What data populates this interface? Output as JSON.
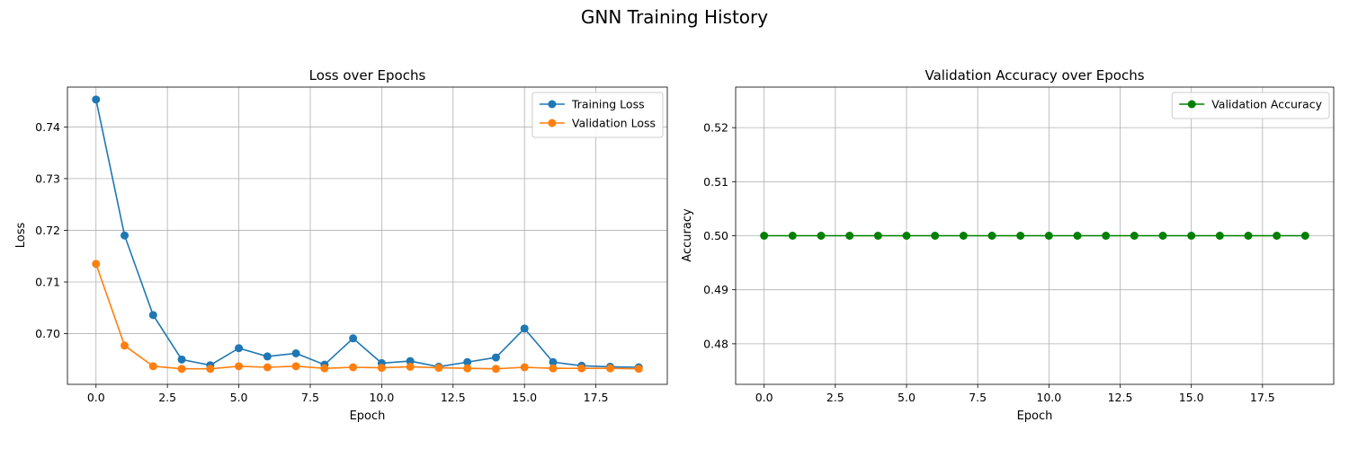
{
  "figure": {
    "title": "GNN Training History"
  },
  "chart_data": [
    {
      "type": "line",
      "title": "Loss over Epochs",
      "xlabel": "Epoch",
      "ylabel": "Loss",
      "x": [
        0,
        1,
        2,
        3,
        4,
        5,
        6,
        7,
        8,
        9,
        10,
        11,
        12,
        13,
        14,
        15,
        16,
        17,
        18,
        19
      ],
      "xlim": [
        -1.0,
        20.0
      ],
      "ylim": [
        0.6902,
        0.7477
      ],
      "xticks": [
        0.0,
        2.5,
        5.0,
        7.5,
        10.0,
        12.5,
        15.0,
        17.5
      ],
      "xtick_labels": [
        "0.0",
        "2.5",
        "5.0",
        "7.5",
        "10.0",
        "12.5",
        "15.0",
        "17.5"
      ],
      "yticks": [
        0.7,
        0.71,
        0.72,
        0.73,
        0.74
      ],
      "ytick_labels": [
        "0.70",
        "0.71",
        "0.72",
        "0.73",
        "0.74"
      ],
      "grid": true,
      "legend_position": "top-right",
      "series": [
        {
          "name": "Training Loss",
          "color": "#1f77b4",
          "marker": "circle",
          "values": [
            0.7453,
            0.719,
            0.7036,
            0.695,
            0.6939,
            0.6972,
            0.6956,
            0.6962,
            0.694,
            0.6991,
            0.6943,
            0.6947,
            0.6936,
            0.6945,
            0.6954,
            0.701,
            0.6945,
            0.6938,
            0.6936,
            0.6935
          ]
        },
        {
          "name": "Validation Loss",
          "color": "#ff7f0e",
          "marker": "circle",
          "values": [
            0.7135,
            0.6977,
            0.6937,
            0.6932,
            0.6932,
            0.6937,
            0.6935,
            0.6937,
            0.6933,
            0.6935,
            0.6934,
            0.6936,
            0.6934,
            0.6933,
            0.6932,
            0.6935,
            0.6933,
            0.6933,
            0.6933,
            0.6932
          ]
        }
      ]
    },
    {
      "type": "line",
      "title": "Validation Accuracy over Epochs",
      "xlabel": "Epoch",
      "ylabel": "Accuracy",
      "x": [
        0,
        1,
        2,
        3,
        4,
        5,
        6,
        7,
        8,
        9,
        10,
        11,
        12,
        13,
        14,
        15,
        16,
        17,
        18,
        19
      ],
      "xlim": [
        -1.0,
        20.0
      ],
      "ylim": [
        0.4725,
        0.5275
      ],
      "xticks": [
        0.0,
        2.5,
        5.0,
        7.5,
        10.0,
        12.5,
        15.0,
        17.5
      ],
      "xtick_labels": [
        "0.0",
        "2.5",
        "5.0",
        "7.5",
        "10.0",
        "12.5",
        "15.0",
        "17.5"
      ],
      "yticks": [
        0.48,
        0.49,
        0.5,
        0.51,
        0.52
      ],
      "ytick_labels": [
        "0.48",
        "0.49",
        "0.50",
        "0.51",
        "0.52"
      ],
      "grid": true,
      "legend_position": "top-right",
      "series": [
        {
          "name": "Validation Accuracy",
          "color": "#008000",
          "marker": "circle",
          "values": [
            0.5,
            0.5,
            0.5,
            0.5,
            0.5,
            0.5,
            0.5,
            0.5,
            0.5,
            0.5,
            0.5,
            0.5,
            0.5,
            0.5,
            0.5,
            0.5,
            0.5,
            0.5,
            0.5,
            0.5
          ]
        }
      ]
    }
  ]
}
